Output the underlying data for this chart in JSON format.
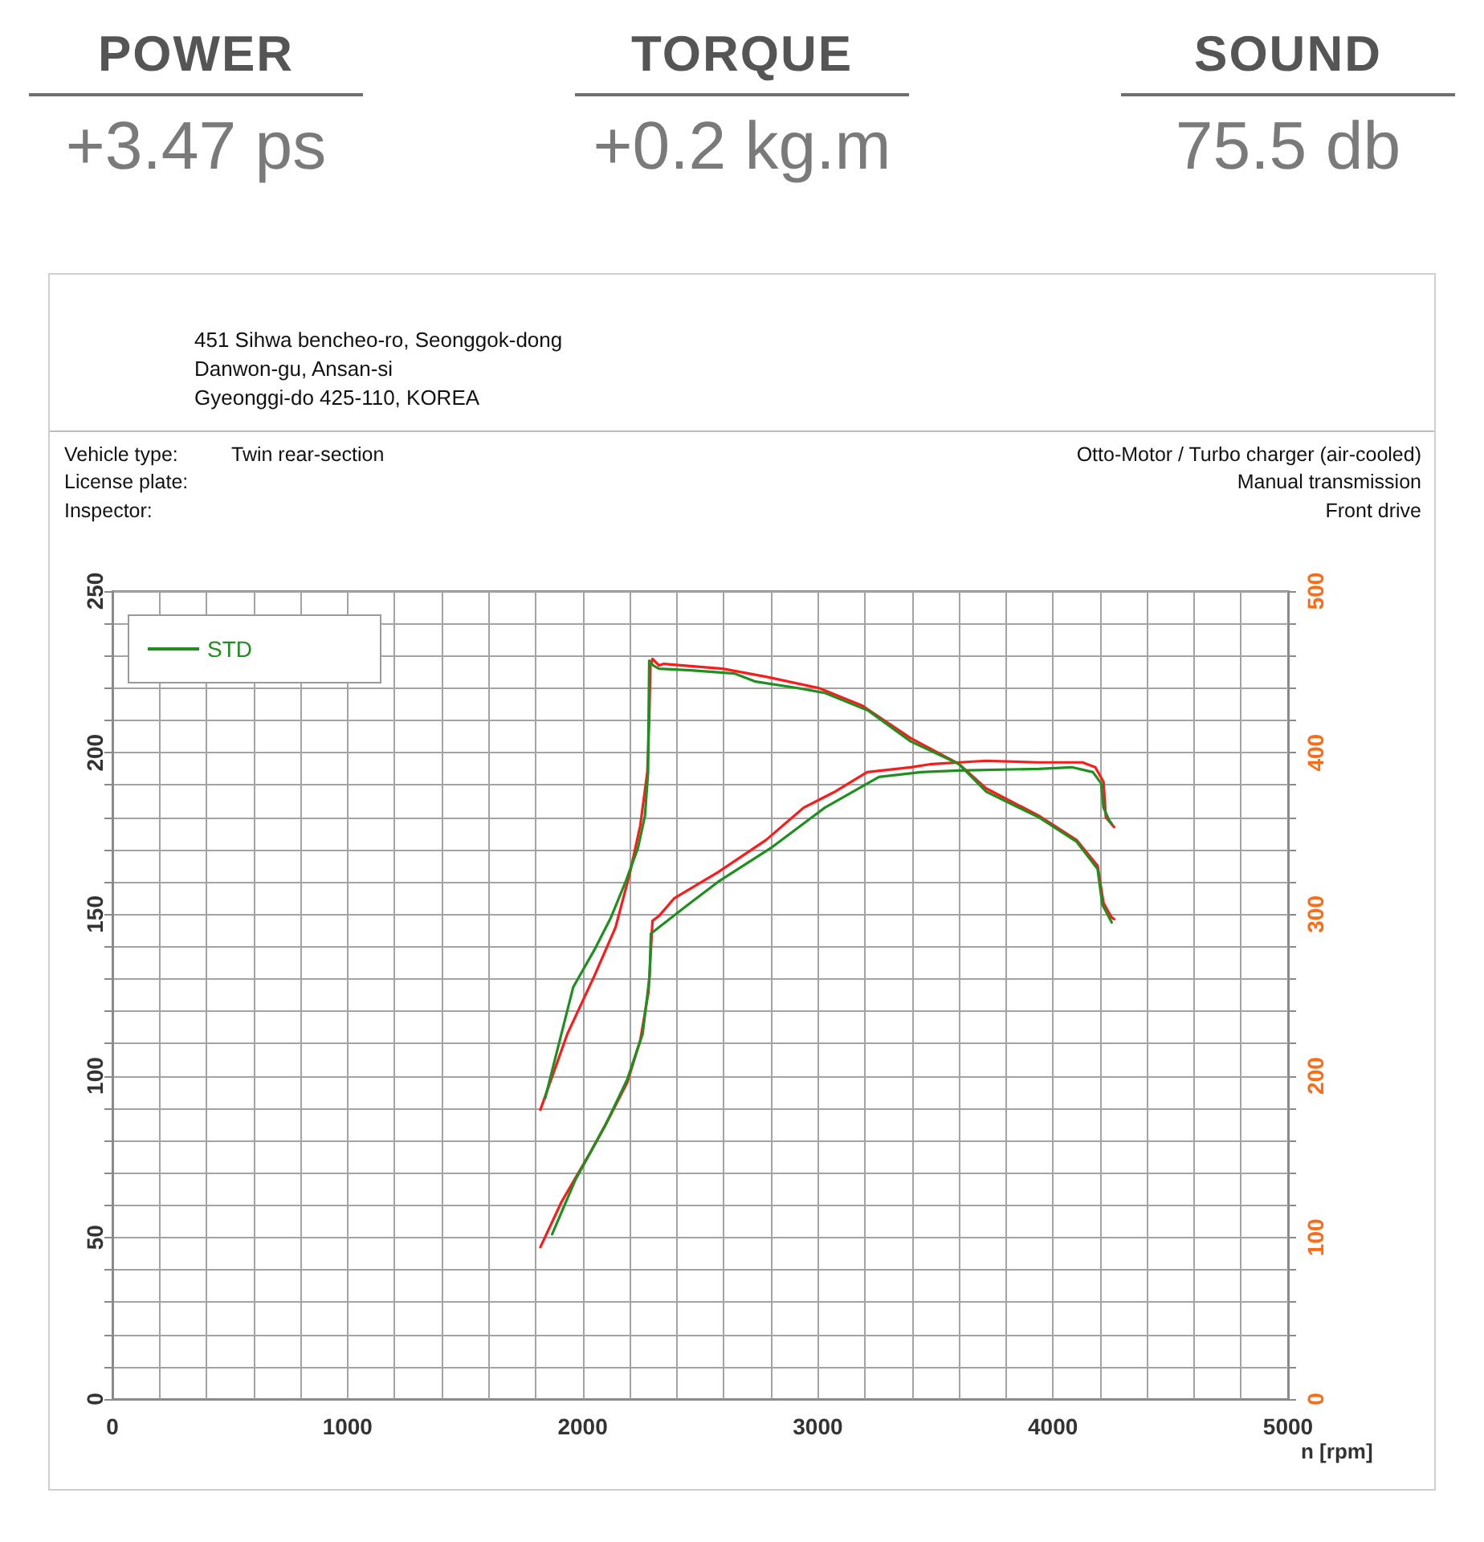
{
  "chart_data": [
    {
      "type": "other",
      "annotations": [
        "POWER",
        "+3.47 ps",
        "TORQUE",
        "+0.2 kg.m",
        "SOUND",
        "75.5 db"
      ]
    },
    {
      "type": "line",
      "annotations": [
        "451 Sihwa bencheo-ro, Seonggok-dong",
        "Danwon-gu, Ansan-si",
        "Gyeonggi-do 425-110, KOREA",
        "Vehicle type:",
        "Twin rear-section",
        "License plate:",
        "Inspector:",
        "Otto-Motor / Turbo charger (air-cooled)",
        "Manual transmission",
        "Front drive"
      ],
      "xlabel": "n [rpm]",
      "series": [
        {
          "color": "#ff1a1a",
          "x": [
            1820,
            1910,
            2030,
            2120,
            2190,
            2245,
            2280,
            2290,
            2297,
            2325,
            2390,
            2575,
            2780,
            2940,
            3075,
            3210,
            3395,
            3485,
            3715,
            3940,
            4125,
            4180,
            4215,
            4225,
            4260
          ],
          "values": [
            47,
            61,
            76,
            88,
            98,
            111,
            126,
            139,
            148,
            149.5,
            155,
            163,
            173,
            183,
            188,
            194,
            195.5,
            196.5,
            197.5,
            197,
            197,
            195.5,
            191,
            180,
            177
          ]
        },
        {
          "name": "STD",
          "color": "#1f8f1f",
          "x": [
            1870,
            1970,
            2095,
            2190,
            2255,
            2285,
            2290,
            2325,
            2360,
            2440,
            2575,
            2800,
            3030,
            3260,
            3440,
            3600,
            3940,
            4080,
            4170,
            4205,
            4215,
            4240,
            4250
          ],
          "values": [
            51,
            68,
            84.5,
            99,
            113,
            131,
            144,
            146,
            148,
            152.5,
            160,
            170.5,
            183,
            192.5,
            194,
            194.5,
            195,
            195.5,
            194,
            190.5,
            183,
            179,
            178
          ]
        },
        {
          "color": "#ff1a1a",
          "axis": "y2",
          "x": [
            1820,
            1935,
            2050,
            2140,
            2200,
            2245,
            2275,
            2283,
            2288,
            2297,
            2325,
            2345,
            2595,
            2780,
            3005,
            3190,
            3395,
            3485,
            3600,
            3715,
            3940,
            4100,
            4190,
            4215,
            4250,
            4260
          ],
          "values": [
            179,
            226,
            262,
            292,
            325,
            355,
            388,
            421,
            454,
            458,
            454,
            455,
            452,
            447,
            440,
            429,
            409,
            402,
            393,
            378,
            361,
            346,
            330,
            307,
            298,
            297
          ]
        },
        {
          "color": "#1f8f1f",
          "axis": "y2",
          "x": [
            1840,
            1960,
            2050,
            2120,
            2185,
            2235,
            2265,
            2278,
            2283,
            2300,
            2325,
            2460,
            2645,
            2735,
            2915,
            3030,
            3215,
            3395,
            3600,
            3715,
            3940,
            4100,
            4190,
            4210,
            4250
          ],
          "values": [
            186,
            255,
            278,
            298,
            321,
            341,
            361,
            388,
            457,
            454,
            452,
            451,
            449,
            444,
            440,
            437,
            426,
            407,
            393,
            376,
            360,
            345,
            328,
            306,
            295
          ]
        }
      ],
      "xlim": [
        0,
        5000
      ],
      "xticks": [
        0,
        {
          "value": 200,
          "label": null
        },
        {
          "value": 400,
          "label": null
        },
        {
          "value": 600,
          "label": null
        },
        {
          "value": 800,
          "label": null
        },
        1000,
        {
          "value": 1200,
          "label": null
        },
        {
          "value": 1400,
          "label": null
        },
        {
          "value": 1600,
          "label": null
        },
        {
          "value": 1800,
          "label": null
        },
        2000,
        {
          "value": 2200,
          "label": null
        },
        {
          "value": 2400,
          "label": null
        },
        {
          "value": 2600,
          "label": null
        },
        {
          "value": 2800,
          "label": null
        },
        3000,
        {
          "value": 3200,
          "label": null
        },
        {
          "value": 3400,
          "label": null
        },
        {
          "value": 3600,
          "label": null
        },
        {
          "value": 3800,
          "label": null
        },
        4000,
        {
          "value": 4200,
          "label": null
        },
        {
          "value": 4400,
          "label": null
        },
        {
          "value": 4600,
          "label": null
        },
        {
          "value": 4800,
          "label": null
        },
        5000
      ],
      "ylim": [
        0,
        250
      ],
      "yticks": [
        0,
        {
          "value": 10,
          "label": null
        },
        {
          "value": 20,
          "label": null
        },
        {
          "value": 30,
          "label": null
        },
        {
          "value": 40,
          "label": null
        },
        50,
        {
          "value": 60,
          "label": null
        },
        {
          "value": 70,
          "label": null
        },
        {
          "value": 80,
          "label": null
        },
        {
          "value": 90,
          "label": null
        },
        100,
        {
          "value": 110,
          "label": null
        },
        {
          "value": 120,
          "label": null
        },
        {
          "value": 130,
          "label": null
        },
        {
          "value": 140,
          "label": null
        },
        150,
        {
          "value": 160,
          "label": null
        },
        {
          "value": 170,
          "label": null
        },
        {
          "value": 180,
          "label": null
        },
        {
          "value": 190,
          "label": null
        },
        200,
        {
          "value": 210,
          "label": null
        },
        {
          "value": 220,
          "label": null
        },
        {
          "value": 230,
          "label": null
        },
        {
          "value": 240,
          "label": null
        },
        250
      ],
      "y2lim": [
        0,
        500
      ],
      "y2ticks": [
        0,
        {
          "value": 20,
          "label": null
        },
        {
          "value": 40,
          "label": null
        },
        {
          "value": 60,
          "label": null
        },
        {
          "value": 80,
          "label": null
        },
        100,
        {
          "value": 120,
          "label": null
        },
        {
          "value": 140,
          "label": null
        },
        {
          "value": 160,
          "label": null
        },
        {
          "value": 180,
          "label": null
        },
        200,
        {
          "value": 220,
          "label": null
        },
        {
          "value": 240,
          "label": null
        },
        {
          "value": 260,
          "label": null
        },
        {
          "value": 280,
          "label": null
        },
        300,
        {
          "value": 320,
          "label": null
        },
        {
          "value": 340,
          "label": null
        },
        {
          "value": 360,
          "label": null
        },
        {
          "value": 380,
          "label": null
        },
        400,
        {
          "value": 420,
          "label": null
        },
        {
          "value": 440,
          "label": null
        },
        {
          "value": 460,
          "label": null
        },
        {
          "value": 480,
          "label": null
        },
        500
      ],
      "grid": true,
      "legend": "top left",
      "marker": "none"
    }
  ]
}
